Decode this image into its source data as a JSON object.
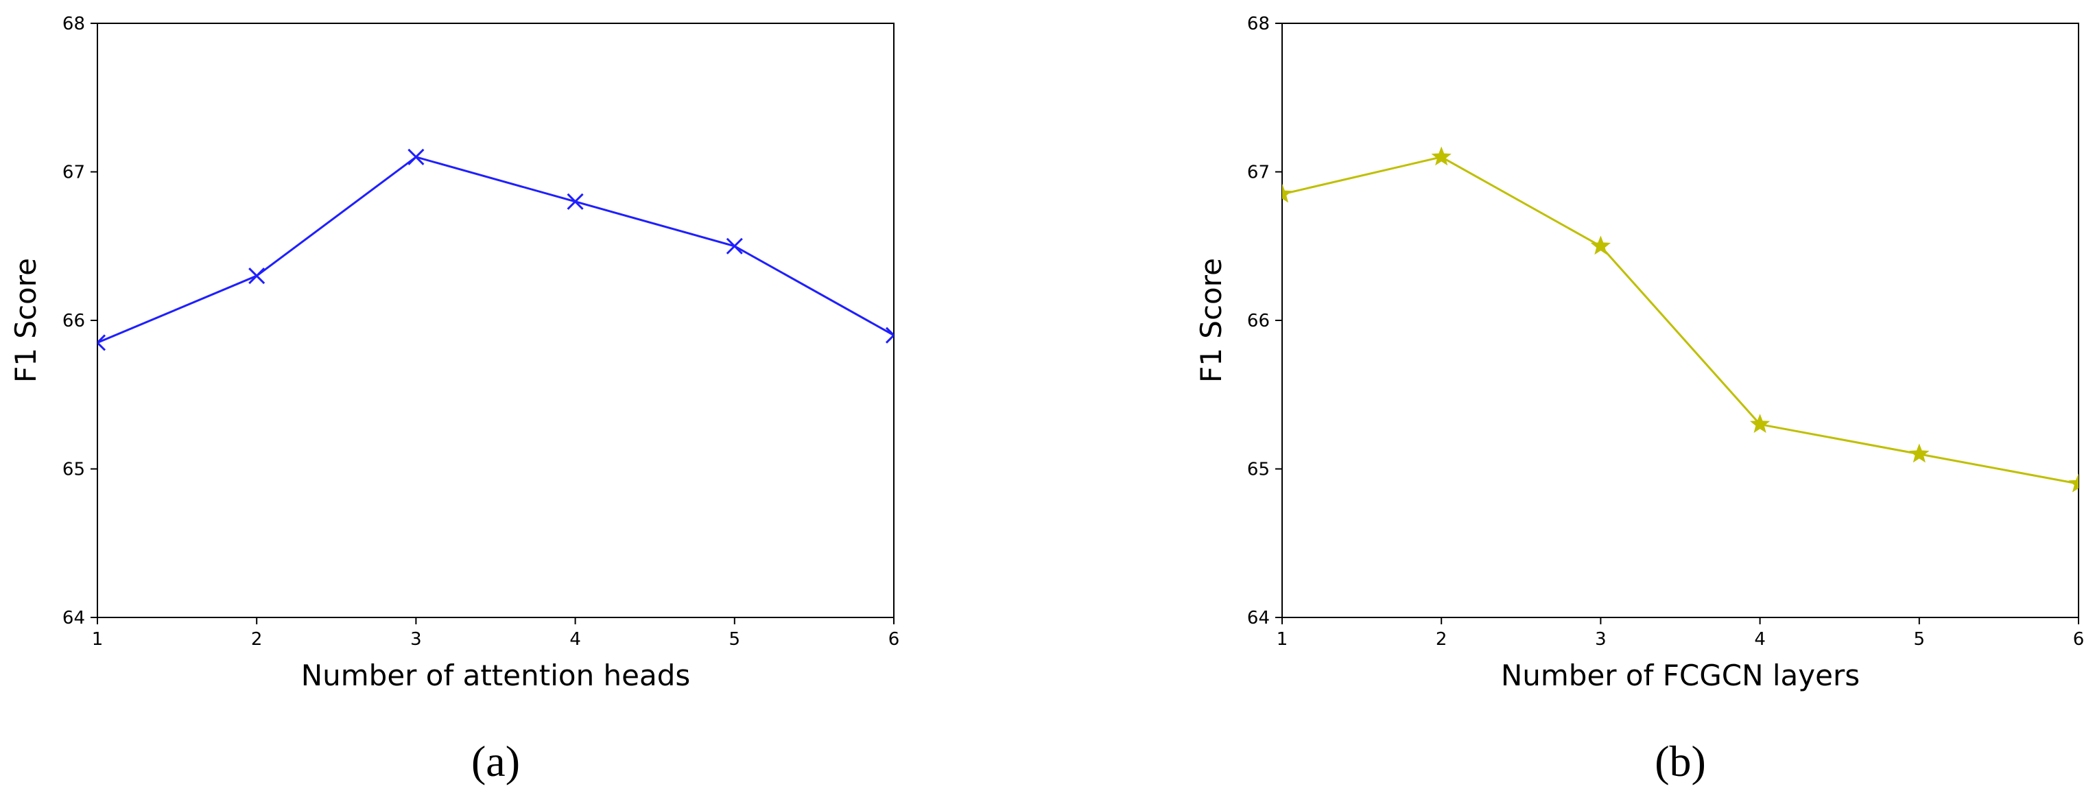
{
  "chart_data": [
    {
      "type": "line",
      "caption": "(a)",
      "xlabel": "Number of attention heads",
      "ylabel": "F1 Score",
      "xlim": [
        1,
        6
      ],
      "ylim": [
        64,
        68
      ],
      "xticks": [
        1,
        2,
        3,
        4,
        5,
        6
      ],
      "yticks": [
        64,
        65,
        66,
        67,
        68
      ],
      "grid": false,
      "series": [
        {
          "color": "#1f1fff",
          "marker": "x",
          "x": [
            1,
            2,
            3,
            4,
            5,
            6
          ],
          "y": [
            65.85,
            66.3,
            67.1,
            66.8,
            66.5,
            65.9
          ]
        }
      ]
    },
    {
      "type": "line",
      "caption": "(b)",
      "xlabel": "Number of FCGCN layers",
      "ylabel": "F1 Score",
      "xlim": [
        1,
        6
      ],
      "ylim": [
        64,
        68
      ],
      "xticks": [
        1,
        2,
        3,
        4,
        5,
        6
      ],
      "yticks": [
        64,
        65,
        66,
        67,
        68
      ],
      "grid": false,
      "series": [
        {
          "color": "#bfbf00",
          "marker": "star",
          "x": [
            1,
            2,
            3,
            4,
            5,
            6
          ],
          "y": [
            66.85,
            67.1,
            66.5,
            65.3,
            65.1,
            64.9
          ]
        }
      ]
    }
  ]
}
